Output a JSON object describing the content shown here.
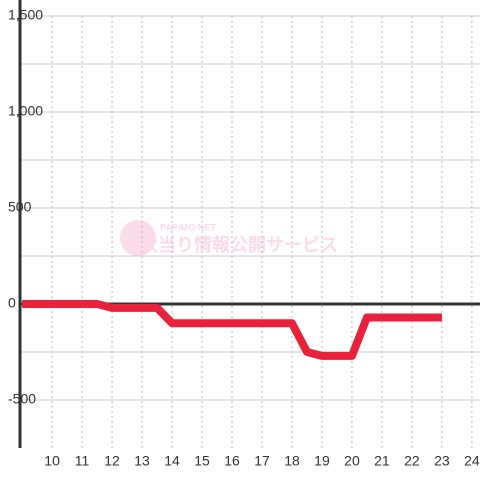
{
  "chart_data": {
    "type": "line",
    "watermark": {
      "brand": "PAPIMO-NET",
      "text": "大当り情報公開サービス"
    },
    "x": [
      9,
      11.5,
      12,
      13.5,
      14,
      18,
      18.5,
      19,
      20,
      20.5,
      23
    ],
    "series": [
      {
        "color": "#e8223a",
        "values": [
          0,
          0,
          -20,
          -20,
          -100,
          -100,
          -250,
          -270,
          -270,
          -70,
          -70
        ]
      }
    ],
    "xlim": [
      8.93,
      24.27
    ],
    "xticks": [
      10,
      11,
      12,
      13,
      14,
      15,
      16,
      17,
      18,
      19,
      20,
      21,
      22,
      23,
      24
    ],
    "ylim": [
      -750,
      1500
    ],
    "yticks": [
      {
        "value": -500,
        "label": "-500"
      },
      0,
      500,
      {
        "value": 1000,
        "label": "1,000"
      },
      {
        "value": 1500,
        "label": "1,500"
      }
    ],
    "y_minor_ticks": [
      -250,
      250,
      750,
      1250
    ],
    "grid": true
  }
}
